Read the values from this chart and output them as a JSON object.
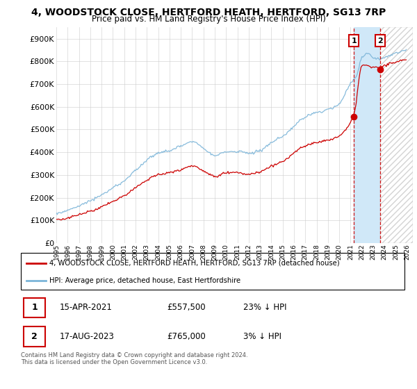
{
  "title": "4, WOODSTOCK CLOSE, HERTFORD HEATH, HERTFORD, SG13 7RP",
  "subtitle": "Price paid vs. HM Land Registry's House Price Index (HPI)",
  "legend_line1": "4, WOODSTOCK CLOSE, HERTFORD HEATH, HERTFORD, SG13 7RP (detached house)",
  "legend_line2": "HPI: Average price, detached house, East Hertfordshire",
  "sale1_date": "15-APR-2021",
  "sale1_price": "£557,500",
  "sale1_hpi": "23% ↓ HPI",
  "sale2_date": "17-AUG-2023",
  "sale2_price": "£765,000",
  "sale2_hpi": "3% ↓ HPI",
  "footer": "Contains HM Land Registry data © Crown copyright and database right 2024.\nThis data is licensed under the Open Government Licence v3.0.",
  "hpi_color": "#7ab4d8",
  "price_color": "#cc0000",
  "shade_color": "#d0e8f8",
  "ylim": [
    0,
    950000
  ],
  "yticks": [
    0,
    100000,
    200000,
    300000,
    400000,
    500000,
    600000,
    700000,
    800000,
    900000
  ],
  "xlim_start": 1995.0,
  "xlim_end": 2026.5,
  "sale1_x": 2021.29,
  "sale1_y": 557500,
  "sale2_x": 2023.625,
  "sale2_y": 765000
}
